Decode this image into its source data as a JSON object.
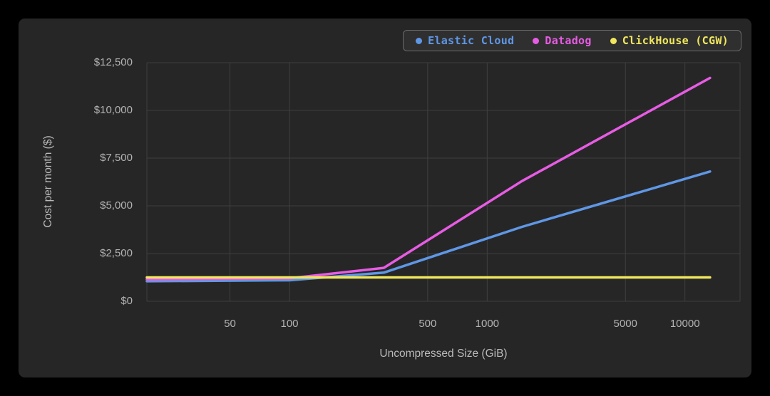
{
  "chart_data": {
    "type": "line",
    "title": "",
    "xlabel": "Uncompressed Size (GiB)",
    "ylabel": "Cost per month ($)",
    "x_scale": "log",
    "x_domain": [
      19,
      19000
    ],
    "y_domain": [
      0,
      12500
    ],
    "x_ticks": [
      50,
      100,
      500,
      1000,
      5000,
      10000
    ],
    "x_tick_labels": [
      "50",
      "100",
      "500",
      "1000",
      "5000",
      "10000"
    ],
    "y_ticks": [
      0,
      2500,
      5000,
      7500,
      10000,
      12500
    ],
    "y_tick_labels": [
      "$0",
      "$2,500",
      "$5,000",
      "$7,500",
      "$10,000",
      "$12,500"
    ],
    "grid": true,
    "legend_position": "top-right",
    "series": [
      {
        "name": "Elastic Cloud",
        "color": "#5f97e6",
        "points": [
          [
            19,
            1050
          ],
          [
            100,
            1100
          ],
          [
            300,
            1500
          ],
          [
            1500,
            3900
          ],
          [
            13400,
            6800
          ]
        ]
      },
      {
        "name": "Datadog",
        "color": "#e75ce4",
        "points": [
          [
            19,
            1150
          ],
          [
            100,
            1200
          ],
          [
            300,
            1750
          ],
          [
            1500,
            6300
          ],
          [
            13400,
            11700
          ]
        ]
      },
      {
        "name": "ClickHouse (CGW)",
        "color": "#f0e75e",
        "points": [
          [
            19,
            1250
          ],
          [
            13400,
            1250
          ]
        ]
      }
    ]
  },
  "colors": {
    "background": "#000000",
    "card": "#262626",
    "grid": "#3f3f3f",
    "tick_label": "#b3b3b3",
    "axis_title": "#bababa",
    "legend_bg": "#2f2f2f",
    "legend_border": "#6a6a6a"
  }
}
